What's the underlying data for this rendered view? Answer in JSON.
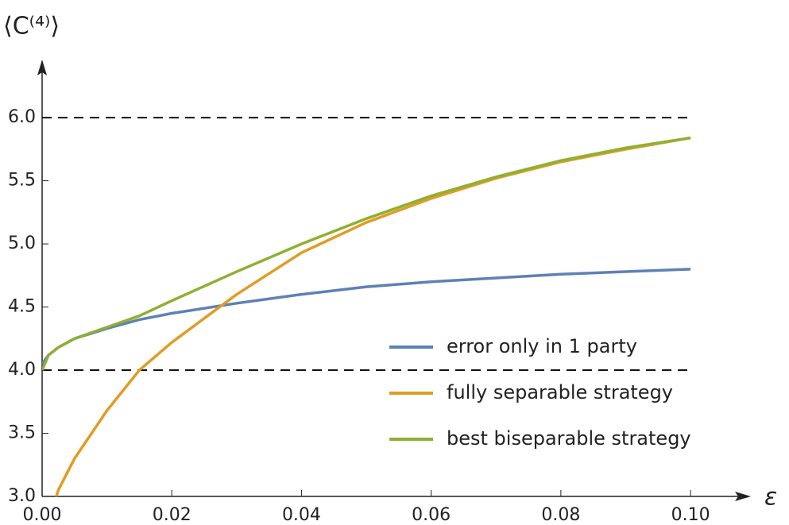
{
  "chart_data": {
    "type": "line",
    "ylabel": "⟨C⁽⁴⁾⟩",
    "xlabel": "ε",
    "x": [
      0,
      0.001,
      0.002,
      0.0025,
      0.005,
      0.01,
      0.015,
      0.02,
      0.03,
      0.04,
      0.05,
      0.06,
      0.07,
      0.08,
      0.09,
      0.1
    ],
    "series": [
      {
        "name": "error only in 1 party",
        "color": "#5e81b5",
        "values": [
          4.05,
          4.12,
          4.16,
          4.18,
          4.25,
          4.33,
          4.4,
          4.45,
          4.53,
          4.6,
          4.66,
          4.7,
          4.73,
          4.76,
          4.78,
          4.8
        ]
      },
      {
        "name": "fully separable strategy",
        "color": "#e19c24",
        "values": [
          null,
          null,
          2.97,
          3.05,
          3.3,
          3.68,
          4.0,
          4.22,
          4.6,
          4.93,
          5.17,
          5.36,
          5.52,
          5.65,
          5.75,
          5.84
        ]
      },
      {
        "name": "best biseparable strategy",
        "color": "#8fb032",
        "values": [
          4.0,
          4.12,
          4.16,
          4.18,
          4.25,
          4.34,
          4.43,
          4.55,
          4.78,
          5.0,
          5.2,
          5.38,
          5.53,
          5.66,
          5.76,
          5.84
        ]
      }
    ],
    "hlines": [
      4,
      6
    ],
    "xlim": [
      0,
      0.1093
    ],
    "ylim": [
      3.0,
      6.46
    ],
    "xticks": [
      {
        "value": 0,
        "label": "0.00"
      },
      {
        "value": 0.02,
        "label": "0.02"
      },
      {
        "value": 0.04,
        "label": "0.04"
      },
      {
        "value": 0.06,
        "label": "0.06"
      },
      {
        "value": 0.08,
        "label": "0.08"
      },
      {
        "value": 0.1,
        "label": "0.10"
      }
    ],
    "yticks": [
      {
        "value": 3,
        "label": "3.0"
      },
      {
        "value": 3.5,
        "label": "3.5"
      },
      {
        "value": 4,
        "label": "4.0"
      },
      {
        "value": 4.5,
        "label": "4.5"
      },
      {
        "value": 5,
        "label": "5.0"
      },
      {
        "value": 5.5,
        "label": "5.5"
      },
      {
        "value": 6,
        "label": "6.0"
      }
    ],
    "legend": "lower right"
  }
}
